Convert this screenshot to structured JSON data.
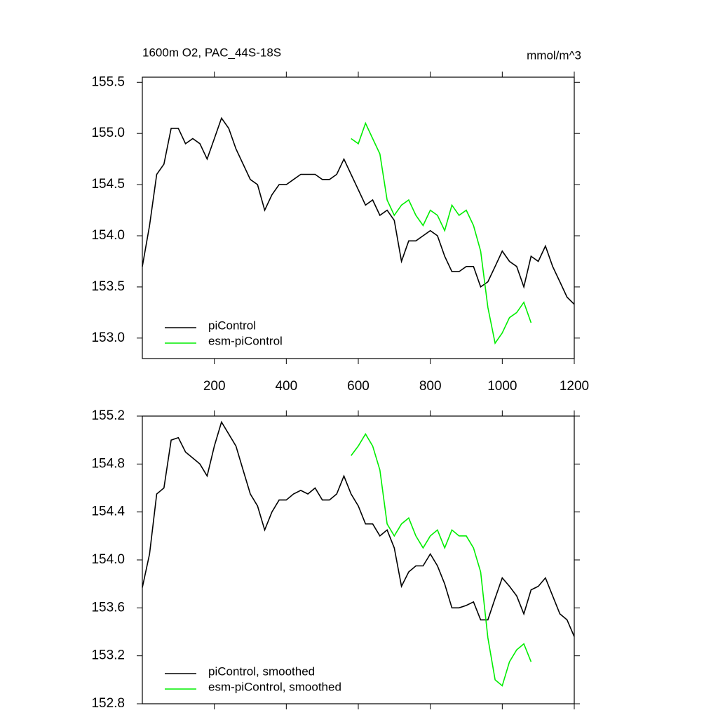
{
  "chart_data": [
    {
      "type": "line",
      "title": "1600m O2, PAC_44S-18S",
      "units": "mmol/m^3",
      "x": [
        0,
        20,
        40,
        60,
        80,
        100,
        120,
        140,
        160,
        180,
        200,
        220,
        240,
        260,
        280,
        300,
        320,
        340,
        360,
        380,
        400,
        420,
        440,
        460,
        480,
        500,
        520,
        540,
        560,
        580,
        600,
        620,
        640,
        660,
        680,
        700,
        720,
        740,
        760,
        780,
        800,
        820,
        840,
        860,
        880,
        900,
        920,
        940,
        960,
        980,
        1000,
        1020,
        1040,
        1060,
        1080,
        1100,
        1120,
        1140,
        1160,
        1180,
        1200
      ],
      "series": [
        {
          "name": "piControl",
          "color": "#000000",
          "values": [
            153.7,
            154.1,
            154.6,
            154.7,
            155.05,
            155.05,
            154.9,
            154.95,
            154.9,
            154.75,
            154.95,
            155.15,
            155.05,
            154.85,
            154.7,
            154.55,
            154.5,
            154.25,
            154.4,
            154.5,
            154.5,
            154.55,
            154.6,
            154.6,
            154.6,
            154.55,
            154.55,
            154.6,
            154.75,
            154.6,
            154.45,
            154.3,
            154.35,
            154.2,
            154.25,
            154.15,
            153.75,
            153.95,
            153.95,
            154.0,
            154.05,
            154.0,
            153.8,
            153.65,
            153.65,
            153.7,
            153.7,
            153.5,
            153.55,
            153.7,
            153.85,
            153.75,
            153.7,
            153.5,
            153.8,
            153.75,
            153.9,
            153.7,
            153.55,
            153.4,
            153.33
          ]
        },
        {
          "name": "esm-piControl",
          "color": "#00ee00",
          "values": [
            null,
            null,
            null,
            null,
            null,
            null,
            null,
            null,
            null,
            null,
            null,
            null,
            null,
            null,
            null,
            null,
            null,
            null,
            null,
            null,
            null,
            null,
            null,
            null,
            null,
            null,
            null,
            null,
            null,
            154.95,
            154.9,
            155.1,
            154.95,
            154.8,
            154.35,
            154.2,
            154.3,
            154.35,
            154.2,
            154.1,
            154.25,
            154.2,
            154.05,
            154.3,
            154.2,
            154.25,
            154.1,
            153.85,
            153.3,
            152.95,
            153.05,
            153.2,
            153.25,
            153.35,
            153.15,
            null,
            null,
            null,
            null,
            null,
            null
          ]
        }
      ],
      "xlim": [
        0,
        1200
      ],
      "xticks": [
        200,
        400,
        600,
        800,
        1000,
        1200
      ],
      "ylim": [
        152.8,
        155.55
      ],
      "yticks": [
        {
          "value": 153.0,
          "label": "153.0"
        },
        153.5,
        {
          "value": 154.0,
          "label": "154.0"
        },
        154.5,
        {
          "value": 155.0,
          "label": "155.0"
        },
        155.5
      ]
    },
    {
      "type": "line",
      "x": [
        0,
        20,
        40,
        60,
        80,
        100,
        120,
        140,
        160,
        180,
        200,
        220,
        240,
        260,
        280,
        300,
        320,
        340,
        360,
        380,
        400,
        420,
        440,
        460,
        480,
        500,
        520,
        540,
        560,
        580,
        600,
        620,
        640,
        660,
        680,
        700,
        720,
        740,
        760,
        780,
        800,
        820,
        840,
        860,
        880,
        900,
        920,
        940,
        960,
        980,
        1000,
        1020,
        1040,
        1060,
        1080,
        1100,
        1120,
        1140,
        1160,
        1180,
        1200
      ],
      "series": [
        {
          "name": "piControl, smoothed",
          "color": "#000000",
          "values": [
            153.77,
            154.05,
            154.55,
            154.6,
            155.0,
            155.02,
            154.9,
            154.85,
            154.8,
            154.7,
            154.95,
            155.15,
            155.05,
            154.95,
            154.75,
            154.55,
            154.45,
            154.25,
            154.4,
            154.5,
            154.5,
            154.55,
            154.58,
            154.55,
            154.6,
            154.5,
            154.5,
            154.55,
            154.7,
            154.55,
            154.45,
            154.3,
            154.3,
            154.2,
            154.25,
            154.1,
            153.78,
            153.9,
            153.95,
            153.95,
            154.05,
            153.95,
            153.8,
            153.6,
            153.6,
            153.62,
            153.65,
            153.5,
            153.5,
            153.68,
            153.85,
            153.78,
            153.7,
            153.55,
            153.75,
            153.78,
            153.85,
            153.7,
            153.55,
            153.5,
            153.36
          ]
        },
        {
          "name": "esm-piControl, smoothed",
          "color": "#00ee00",
          "values": [
            null,
            null,
            null,
            null,
            null,
            null,
            null,
            null,
            null,
            null,
            null,
            null,
            null,
            null,
            null,
            null,
            null,
            null,
            null,
            null,
            null,
            null,
            null,
            null,
            null,
            null,
            null,
            null,
            null,
            154.87,
            154.95,
            155.05,
            154.95,
            154.75,
            154.3,
            154.2,
            154.3,
            154.35,
            154.2,
            154.1,
            154.2,
            154.25,
            154.1,
            154.25,
            154.2,
            154.2,
            154.1,
            153.9,
            153.35,
            153.0,
            152.95,
            153.15,
            153.25,
            153.3,
            153.15,
            null,
            null,
            null,
            null,
            null,
            null
          ]
        }
      ],
      "xlim": [
        0,
        1200
      ],
      "xticks": [
        200,
        400,
        600,
        800,
        1000,
        1200
      ],
      "ylim": [
        152.8,
        155.2
      ],
      "yticks": [
        152.8,
        153.2,
        153.6,
        {
          "value": 154.0,
          "label": "154.0"
        },
        154.4,
        154.8,
        155.2
      ]
    }
  ]
}
